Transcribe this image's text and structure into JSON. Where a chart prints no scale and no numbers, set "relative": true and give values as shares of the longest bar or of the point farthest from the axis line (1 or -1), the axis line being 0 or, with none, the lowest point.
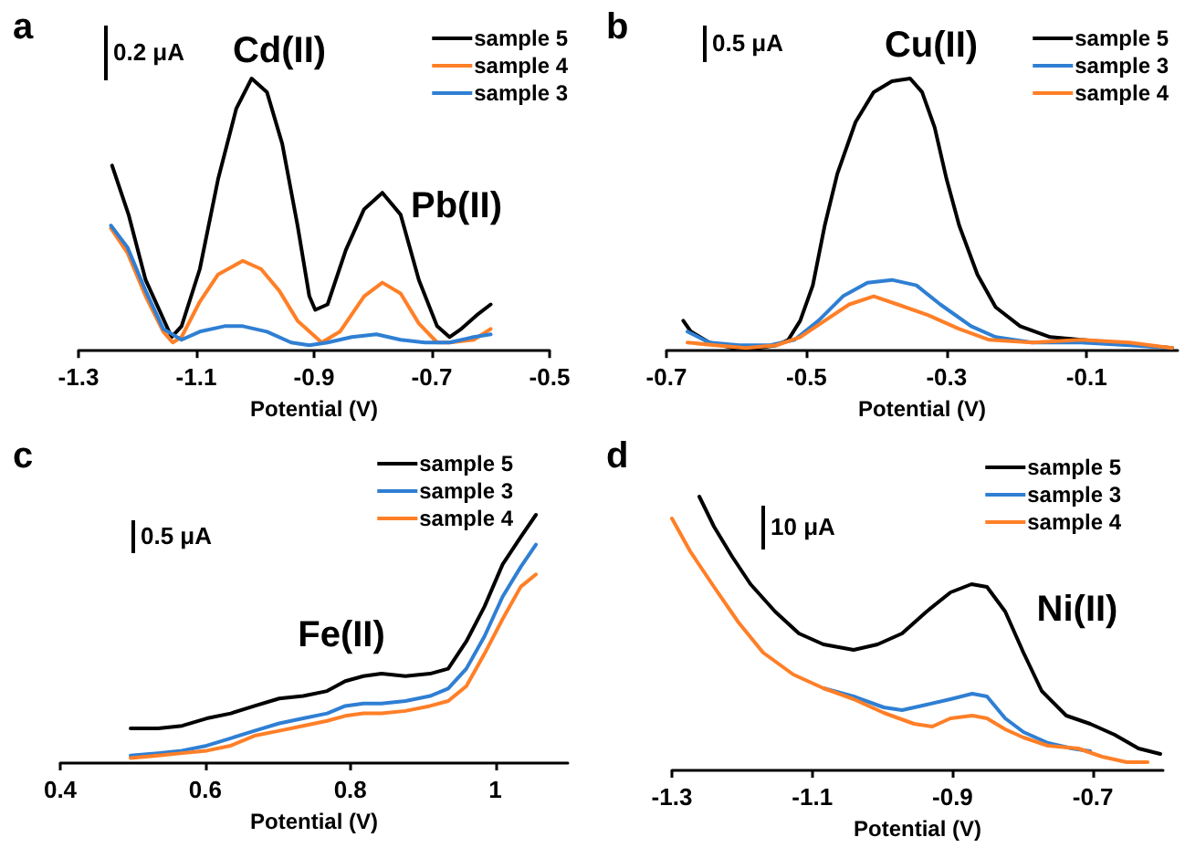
{
  "chart_data": [
    {
      "type": "line",
      "title": "a",
      "xlabel": "Potential (V)",
      "relative": true,
      "xlim": [
        -1.3,
        -0.5
      ],
      "xticks": [
        -1.3,
        -1.1,
        -0.9,
        -0.7,
        -0.5
      ],
      "legend": "top right",
      "marker": "none",
      "annotations": [
        "0.2 μA",
        "Cd(II)",
        "Pb(II)"
      ],
      "series": [
        {
          "name": "sample 5",
          "color": "#000000",
          "x": [
            -1.243,
            -1.215,
            -1.186,
            -1.142,
            -1.125,
            -1.094,
            -1.063,
            -1.032,
            -1.006,
            -0.98,
            -0.954,
            -0.928,
            -0.908,
            -0.898,
            -0.877,
            -0.846,
            -0.815,
            -0.784,
            -0.753,
            -0.722,
            -0.691,
            -0.67,
            -0.65,
            -0.624,
            -0.6
          ],
          "values": [
            0.68,
            0.5,
            0.26,
            0.05,
            0.09,
            0.3,
            0.63,
            0.89,
            1.0,
            0.95,
            0.76,
            0.46,
            0.2,
            0.15,
            0.17,
            0.37,
            0.52,
            0.58,
            0.5,
            0.26,
            0.09,
            0.05,
            0.08,
            0.13,
            0.17
          ]
        },
        {
          "name": "sample 4",
          "color": "#ff7f27",
          "x": [
            -1.245,
            -1.217,
            -1.186,
            -1.156,
            -1.14,
            -1.125,
            -1.094,
            -1.063,
            -1.021,
            -0.99,
            -0.959,
            -0.928,
            -0.887,
            -0.856,
            -0.815,
            -0.784,
            -0.753,
            -0.722,
            -0.691,
            -0.67,
            -0.629,
            -0.6
          ],
          "values": [
            0.45,
            0.36,
            0.2,
            0.07,
            0.03,
            0.05,
            0.18,
            0.28,
            0.33,
            0.3,
            0.22,
            0.11,
            0.03,
            0.07,
            0.2,
            0.25,
            0.21,
            0.1,
            0.03,
            0.03,
            0.04,
            0.08
          ]
        },
        {
          "name": "sample 3",
          "color": "#2f7fd3",
          "x": [
            -1.245,
            -1.217,
            -1.186,
            -1.156,
            -1.125,
            -1.094,
            -1.052,
            -1.021,
            -0.98,
            -0.939,
            -0.908,
            -0.877,
            -0.836,
            -0.794,
            -0.753,
            -0.712,
            -0.67,
            -0.629,
            -0.6
          ],
          "values": [
            0.46,
            0.38,
            0.22,
            0.08,
            0.04,
            0.07,
            0.09,
            0.09,
            0.07,
            0.03,
            0.02,
            0.03,
            0.05,
            0.06,
            0.04,
            0.03,
            0.03,
            0.05,
            0.06
          ]
        }
      ]
    },
    {
      "type": "line",
      "title": "b",
      "xlabel": "Potential (V)",
      "relative": true,
      "xlim": [
        -0.7,
        0.03
      ],
      "xticks": [
        -0.7,
        -0.5,
        -0.3,
        -0.1
      ],
      "legend": "top right",
      "marker": "none",
      "annotations": [
        "0.5 μA",
        "Cu(II)"
      ],
      "series": [
        {
          "name": "sample 5",
          "color": "#000000",
          "x": [
            -0.676,
            -0.665,
            -0.639,
            -0.604,
            -0.57,
            -0.543,
            -0.526,
            -0.509,
            -0.491,
            -0.474,
            -0.456,
            -0.43,
            -0.404,
            -0.378,
            -0.352,
            -0.335,
            -0.317,
            -0.3,
            -0.282,
            -0.256,
            -0.23,
            -0.195,
            -0.152,
            -0.108,
            -0.065,
            -0.021,
            0.022
          ],
          "values": [
            0.11,
            0.07,
            0.03,
            0.01,
            0.01,
            0.02,
            0.04,
            0.11,
            0.24,
            0.46,
            0.65,
            0.84,
            0.95,
            0.99,
            1.0,
            0.95,
            0.82,
            0.63,
            0.46,
            0.28,
            0.16,
            0.09,
            0.05,
            0.04,
            0.03,
            0.02,
            0.01
          ]
        },
        {
          "name": "sample 3",
          "color": "#2f7fd3",
          "x": [
            -0.67,
            -0.639,
            -0.596,
            -0.552,
            -0.517,
            -0.483,
            -0.448,
            -0.413,
            -0.378,
            -0.343,
            -0.309,
            -0.265,
            -0.23,
            -0.178,
            -0.108,
            -0.039,
            0.022
          ],
          "values": [
            0.07,
            0.03,
            0.02,
            0.02,
            0.04,
            0.11,
            0.2,
            0.25,
            0.26,
            0.24,
            0.17,
            0.09,
            0.05,
            0.03,
            0.03,
            0.02,
            0.01
          ]
        },
        {
          "name": "sample 4",
          "color": "#ff7f27",
          "x": [
            -0.67,
            -0.63,
            -0.587,
            -0.543,
            -0.509,
            -0.474,
            -0.439,
            -0.404,
            -0.37,
            -0.326,
            -0.282,
            -0.239,
            -0.178,
            -0.108,
            -0.039,
            0.022
          ],
          "values": [
            0.03,
            0.02,
            0.01,
            0.02,
            0.05,
            0.11,
            0.17,
            0.2,
            0.17,
            0.13,
            0.08,
            0.04,
            0.03,
            0.04,
            0.03,
            0.01
          ]
        }
      ]
    },
    {
      "type": "line",
      "title": "c",
      "xlabel": "Potential (V)",
      "relative": true,
      "xlim": [
        0.4,
        1.1
      ],
      "xticks": [
        0.4,
        0.6,
        0.8,
        1
      ],
      "legend": "top right",
      "marker": "none",
      "annotations": [
        "0.5 μA",
        "Fe(II)"
      ],
      "series": [
        {
          "name": "sample 5",
          "color": "#000000",
          "x": [
            0.497,
            0.535,
            0.568,
            0.602,
            0.635,
            0.668,
            0.702,
            0.735,
            0.768,
            0.793,
            0.818,
            0.843,
            0.876,
            0.91,
            0.935,
            0.96,
            0.985,
            1.01,
            1.035,
            1.056
          ],
          "values": [
            0.14,
            0.14,
            0.15,
            0.18,
            0.2,
            0.23,
            0.26,
            0.27,
            0.29,
            0.33,
            0.35,
            0.36,
            0.35,
            0.36,
            0.38,
            0.49,
            0.63,
            0.8,
            0.91,
            1.0
          ]
        },
        {
          "name": "sample 3",
          "color": "#2f7fd3",
          "x": [
            0.497,
            0.535,
            0.568,
            0.602,
            0.635,
            0.668,
            0.702,
            0.735,
            0.768,
            0.793,
            0.818,
            0.843,
            0.876,
            0.91,
            0.935,
            0.96,
            0.985,
            1.01,
            1.035,
            1.056
          ],
          "values": [
            0.03,
            0.04,
            0.05,
            0.07,
            0.1,
            0.13,
            0.16,
            0.18,
            0.2,
            0.23,
            0.24,
            0.24,
            0.25,
            0.27,
            0.3,
            0.38,
            0.51,
            0.67,
            0.79,
            0.88
          ]
        },
        {
          "name": "sample 4",
          "color": "#ff7f27",
          "x": [
            0.497,
            0.535,
            0.568,
            0.602,
            0.635,
            0.668,
            0.702,
            0.735,
            0.768,
            0.793,
            0.818,
            0.843,
            0.876,
            0.91,
            0.935,
            0.96,
            0.985,
            1.01,
            1.035,
            1.056
          ],
          "values": [
            0.02,
            0.03,
            0.04,
            0.05,
            0.07,
            0.11,
            0.13,
            0.15,
            0.17,
            0.19,
            0.2,
            0.2,
            0.21,
            0.23,
            0.25,
            0.31,
            0.44,
            0.58,
            0.71,
            0.76
          ]
        }
      ]
    },
    {
      "type": "line",
      "title": "d",
      "xlabel": "Potential (V)",
      "relative": true,
      "xlim": [
        -1.3,
        -0.6
      ],
      "xticks": [
        -1.3,
        -1.1,
        -0.9,
        -0.7
      ],
      "legend": "top right",
      "marker": "none",
      "annotations": [
        "10 μA",
        "Ni(II)"
      ],
      "series": [
        {
          "name": "sample 5",
          "color": "#000000",
          "x": [
            -1.261,
            -1.24,
            -1.214,
            -1.188,
            -1.153,
            -1.119,
            -1.084,
            -1.041,
            -1.007,
            -0.972,
            -0.937,
            -0.903,
            -0.873,
            -0.851,
            -0.825,
            -0.799,
            -0.773,
            -0.738,
            -0.704,
            -0.669,
            -0.635,
            -0.604
          ],
          "values": [
            1.0,
            0.89,
            0.78,
            0.68,
            0.58,
            0.5,
            0.46,
            0.44,
            0.46,
            0.5,
            0.58,
            0.65,
            0.68,
            0.67,
            0.58,
            0.43,
            0.29,
            0.2,
            0.17,
            0.13,
            0.08,
            0.06
          ]
        },
        {
          "name": "sample 3",
          "color": "#2f7fd3",
          "x": [
            -1.084,
            -1.041,
            -0.998,
            -0.972,
            -0.937,
            -0.903,
            -0.872,
            -0.851,
            -0.825,
            -0.799,
            -0.764,
            -0.73,
            -0.704
          ],
          "values": [
            0.3,
            0.27,
            0.23,
            0.22,
            0.24,
            0.26,
            0.28,
            0.27,
            0.19,
            0.14,
            0.1,
            0.08,
            0.07
          ]
        },
        {
          "name": "sample 4",
          "color": "#ff7f27",
          "x": [
            -1.3,
            -1.274,
            -1.24,
            -1.205,
            -1.17,
            -1.127,
            -1.084,
            -1.041,
            -0.998,
            -0.955,
            -0.929,
            -0.903,
            -0.872,
            -0.851,
            -0.825,
            -0.799,
            -0.764,
            -0.721,
            -0.687,
            -0.652,
            -0.622
          ],
          "values": [
            0.92,
            0.8,
            0.67,
            0.54,
            0.43,
            0.35,
            0.3,
            0.26,
            0.21,
            0.17,
            0.16,
            0.19,
            0.2,
            0.19,
            0.15,
            0.12,
            0.09,
            0.08,
            0.05,
            0.03,
            0.03
          ]
        }
      ]
    }
  ]
}
